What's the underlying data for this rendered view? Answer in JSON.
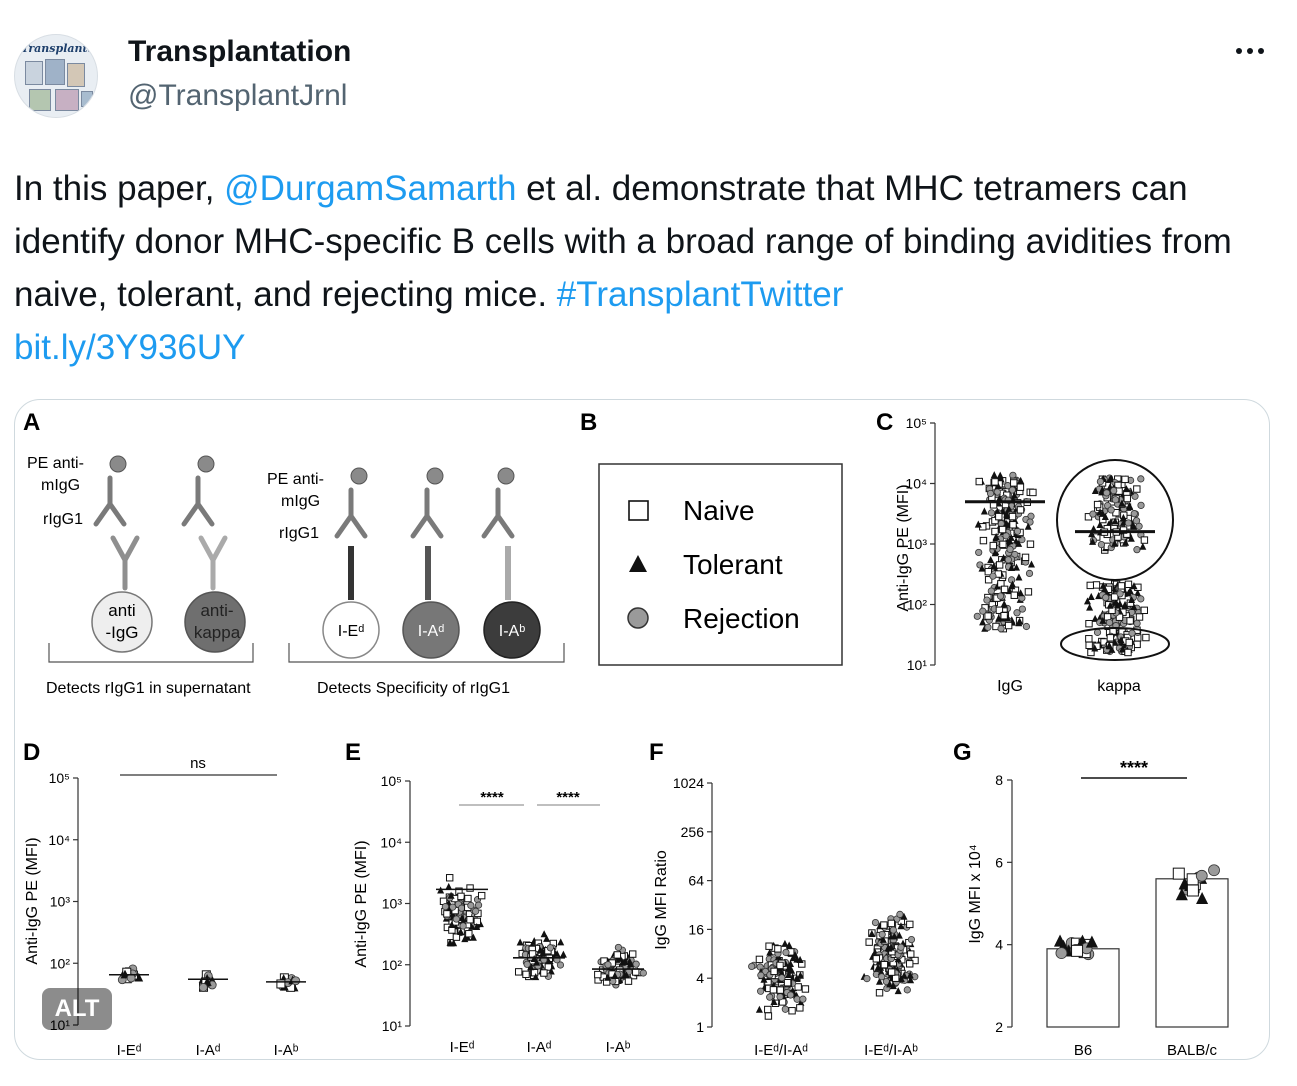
{
  "user": {
    "avatar_text": "Transplantation",
    "name": "Transplantation",
    "handle": "@TransplantJrnl"
  },
  "tweet": {
    "text_1": "In this paper, ",
    "mention": "@DurgamSamarth",
    "text_2": " et al. demonstrate that MHC tetramers can identify donor MHC-specific B cells with a broad range of binding avidities from naive, tolerant, and rejecting mice. ",
    "hashtag": "#TransplantTwitter",
    "link": "bit.ly/3Y936UY"
  },
  "media": {
    "alt_badge": "ALT",
    "panelA": {
      "label": "A",
      "pe_anti_migg": "PE anti-mIgG",
      "rigg1": "rIgG1",
      "bead_anti_igg": "anti -IgG",
      "bead_anti_kappa": "anti- kappa",
      "bead_ied": "I-Eᵈ",
      "bead_iad": "I-Aᵈ",
      "bead_iab": "I-Aᵇ",
      "caption_left": "Detects rIgG1 in supernatant",
      "caption_right": "Detects Specificity of rIgG1"
    },
    "panelB": {
      "label": "B",
      "legend": [
        "Naive",
        "Tolerant",
        "Rejection"
      ]
    },
    "panelC": {
      "label": "C",
      "ylabel": "Anti-IgG PE (MFI)",
      "yticks": [
        "10⁵",
        "10⁴",
        "10³",
        "10²",
        "10¹"
      ],
      "categories": [
        "IgG",
        "kappa"
      ]
    },
    "panelD": {
      "label": "D",
      "ylabel": "Anti-IgG PE (MFI)",
      "sig": "ns",
      "yticks": [
        "10⁵",
        "10⁴",
        "10³",
        "10²",
        "10¹"
      ],
      "categories": [
        "I-Eᵈ",
        "I-Aᵈ",
        "I-Aᵇ"
      ]
    },
    "panelE": {
      "label": "E",
      "ylabel": "Anti-IgG PE (MFI)",
      "sig1": "****",
      "sig2": "****",
      "yticks": [
        "10⁵",
        "10⁴",
        "10³",
        "10²",
        "10¹"
      ],
      "categories": [
        "I-Eᵈ",
        "I-Aᵈ",
        "I-Aᵇ"
      ]
    },
    "panelF": {
      "label": "F",
      "ylabel": "IgG MFI Ratio",
      "yticks": [
        "1024",
        "256",
        "64",
        "16",
        "4",
        "1"
      ],
      "categories": [
        "I-Eᵈ/I-Aᵈ",
        "I-Eᵈ/I-Aᵇ"
      ]
    },
    "panelG": {
      "label": "G",
      "ylabel": "IgG MFI x 10⁴",
      "sig": "****",
      "yticks": [
        "8",
        "6",
        "4",
        "2"
      ],
      "categories": [
        "B6",
        "BALB/c"
      ]
    }
  },
  "chart_data": [
    {
      "panel": "C",
      "type": "scatter",
      "ylabel": "Anti-IgG PE (MFI)",
      "yscale": "log",
      "ylim": [
        10,
        100000
      ],
      "categories": [
        "IgG",
        "kappa"
      ],
      "medians": [
        5000,
        1600
      ]
    },
    {
      "panel": "D",
      "type": "scatter",
      "ylabel": "Anti-IgG PE (MFI)",
      "yscale": "log",
      "ylim": [
        10,
        100000
      ],
      "categories": [
        "I-Eᵈ",
        "I-Aᵈ",
        "I-Aᵇ"
      ],
      "means": [
        65,
        55,
        50
      ],
      "annotation": "ns"
    },
    {
      "panel": "E",
      "type": "scatter",
      "ylabel": "Anti-IgG PE (MFI)",
      "yscale": "log",
      "ylim": [
        10,
        100000
      ],
      "categories": [
        "I-Eᵈ",
        "I-Aᵈ",
        "I-Aᵇ"
      ],
      "means": [
        1700,
        130,
        85
      ],
      "annotation": "****"
    },
    {
      "panel": "F",
      "type": "scatter",
      "ylabel": "IgG MFI Ratio",
      "yscale": "log2",
      "ylim": [
        1,
        1024
      ],
      "categories": [
        "I-Eᵈ/I-Aᵈ",
        "I-Eᵈ/I-Aᵇ"
      ],
      "medians": [
        4,
        8
      ]
    },
    {
      "panel": "G",
      "type": "bar",
      "ylabel": "IgG MFI x 10⁴",
      "ylim": [
        2,
        8
      ],
      "categories": [
        "B6",
        "BALB/c"
      ],
      "values": [
        3.9,
        5.6
      ],
      "annotation": "****"
    }
  ]
}
